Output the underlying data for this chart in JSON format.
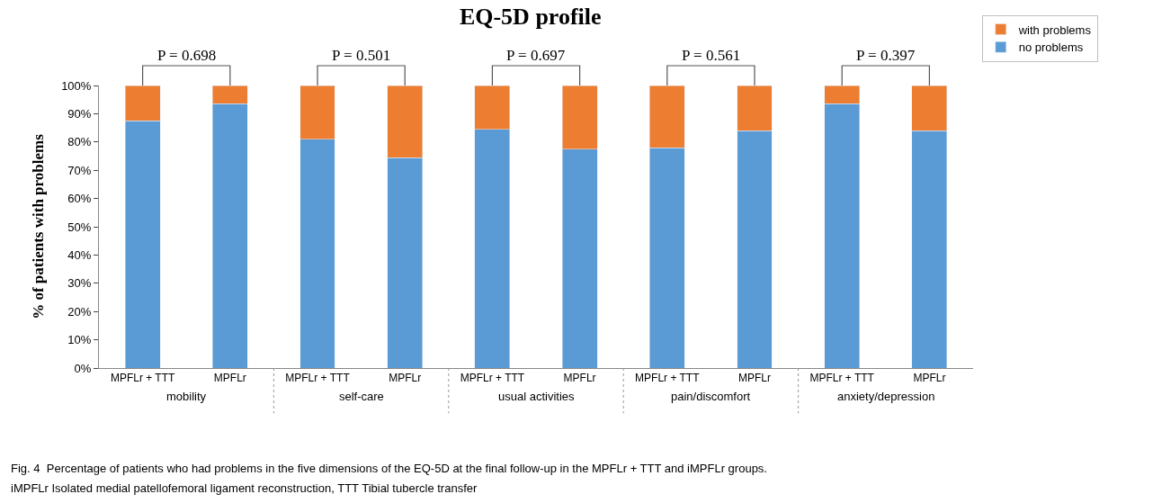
{
  "chart_data": {
    "type": "bar",
    "title": "EQ-5D profile",
    "ylabel": "% of patients with problems",
    "categories": [
      "MPFLr + TTT",
      "MPFLr",
      "MPFLr + TTT",
      "MPFLr",
      "MPFLr + TTT",
      "MPFLr",
      "MPFLr + TTT",
      "MPFLr",
      "MPFLr + TTT",
      "MPFLr"
    ],
    "series": [
      {
        "name": "no problems",
        "color": "#5b9bd5",
        "values": [
          87.5,
          93.5,
          81,
          74.5,
          84.5,
          77.5,
          78,
          84,
          93.5,
          84
        ]
      },
      {
        "name": "with problems",
        "color": "#ed7d31",
        "values": [
          12.5,
          6.5,
          19,
          25.5,
          15.5,
          22.5,
          22,
          16,
          6.5,
          16
        ]
      }
    ],
    "stacked": true,
    "ylim": [
      0,
      100
    ],
    "yticks": [
      {
        "value": 0,
        "label": "0%"
      },
      {
        "value": 10,
        "label": "10%"
      },
      {
        "value": 20,
        "label": "20%"
      },
      {
        "value": 30,
        "label": "30%"
      },
      {
        "value": 40,
        "label": "40%"
      },
      {
        "value": 50,
        "label": "50%"
      },
      {
        "value": 60,
        "label": "60%"
      },
      {
        "value": 70,
        "label": "70%"
      },
      {
        "value": 80,
        "label": "80%"
      },
      {
        "value": 90,
        "label": "90%"
      },
      {
        "value": 100,
        "label": "100%"
      }
    ],
    "legend": "top right",
    "annotations": [
      "P = 0.698",
      "P = 0.501",
      "P = 0.697",
      "P = 0.561",
      "P = 0.397",
      "mobility",
      "self-care",
      "usual activities",
      "pain/discomfort",
      "anxiety/depression",
      "Fig. 4  Percentage of patients who had problems in the five dimensions of the EQ-5D at the final follow-up in the MPFLr + TTT and iMPFLr groups.",
      "iMPFLr Isolated medial patellofemoral ligament reconstruction, TTT Tibial tubercle transfer"
    ]
  }
}
